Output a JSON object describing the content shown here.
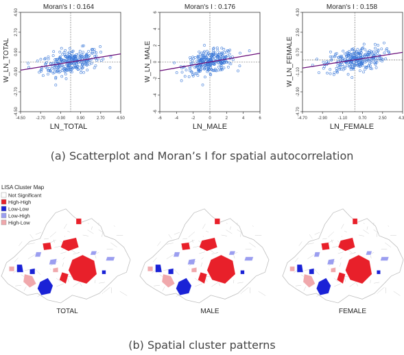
{
  "chart_data": [
    {
      "type": "scatter",
      "title": "Moran's I : 0.164",
      "xlabel": "LN_TOTAL",
      "ylabel": "W_LN_TOTAL",
      "xlim": [
        -4.5,
        4.5
      ],
      "ylim": [
        -4.5,
        4.5
      ],
      "xticks": [
        "-4.50",
        "-2.70",
        "-0.90",
        "0.90",
        "2.70",
        "4.50"
      ],
      "yticks": [
        "-4.50",
        "-2.70",
        "-0.90",
        "0.90",
        "2.70",
        "4.50"
      ],
      "slope": 0.164,
      "point_count": 280,
      "point_spread": [
        1.3,
        0.55
      ]
    },
    {
      "type": "scatter",
      "title": "Moran's I : 0.176",
      "xlabel": "LN_MALE",
      "ylabel": "W_LN_MALE",
      "xlim": [
        -6,
        6
      ],
      "ylim": [
        -6,
        6
      ],
      "xticks": [
        "-6",
        "-4",
        "-2",
        "0",
        "2",
        "4",
        "6"
      ],
      "yticks": [
        "-6",
        "-4",
        "-2",
        "0",
        "2",
        "4",
        "6"
      ],
      "slope": 0.176,
      "point_count": 280,
      "point_spread": [
        1.5,
        0.65
      ]
    },
    {
      "type": "scatter",
      "title": "Moran's I : 0.158",
      "xlabel": "LN_FEMALE",
      "ylabel": "W_LN_FEMALE",
      "xlim": [
        -4.7,
        4.3
      ],
      "ylim": [
        -4.7,
        4.3
      ],
      "xticks": [
        "-4.70",
        "-2.90",
        "-1.10",
        "0.70",
        "2.50",
        "4.30"
      ],
      "yticks": [
        "-4.70",
        "-2.90",
        "-1.10",
        "0.70",
        "2.50",
        "4.30"
      ],
      "slope": 0.158,
      "point_count": 280,
      "point_spread": [
        1.3,
        0.55
      ]
    }
  ],
  "captions": {
    "a": "(a) Scatterplot and Moran’s I for spatial autocorrelation",
    "b": "(b) Spatial cluster patterns"
  },
  "legend": {
    "title": "LISA Cluster Map",
    "items": [
      {
        "label": "Not Significant",
        "color": "#ffffff"
      },
      {
        "label": "High-High",
        "color": "#e8202a"
      },
      {
        "label": "Low-Low",
        "color": "#1a22d6"
      },
      {
        "label": "Low-High",
        "color": "#9b9ef0"
      },
      {
        "label": "High-Low",
        "color": "#f0a8ac"
      }
    ]
  },
  "maps": [
    {
      "label": "TOTAL"
    },
    {
      "label": "MALE"
    },
    {
      "label": "FEMALE"
    }
  ],
  "colors": {
    "point": "#3a78d8",
    "fit_line": "#6a0f7a",
    "boundary": "#bdbdbd",
    "text": "#222222"
  }
}
